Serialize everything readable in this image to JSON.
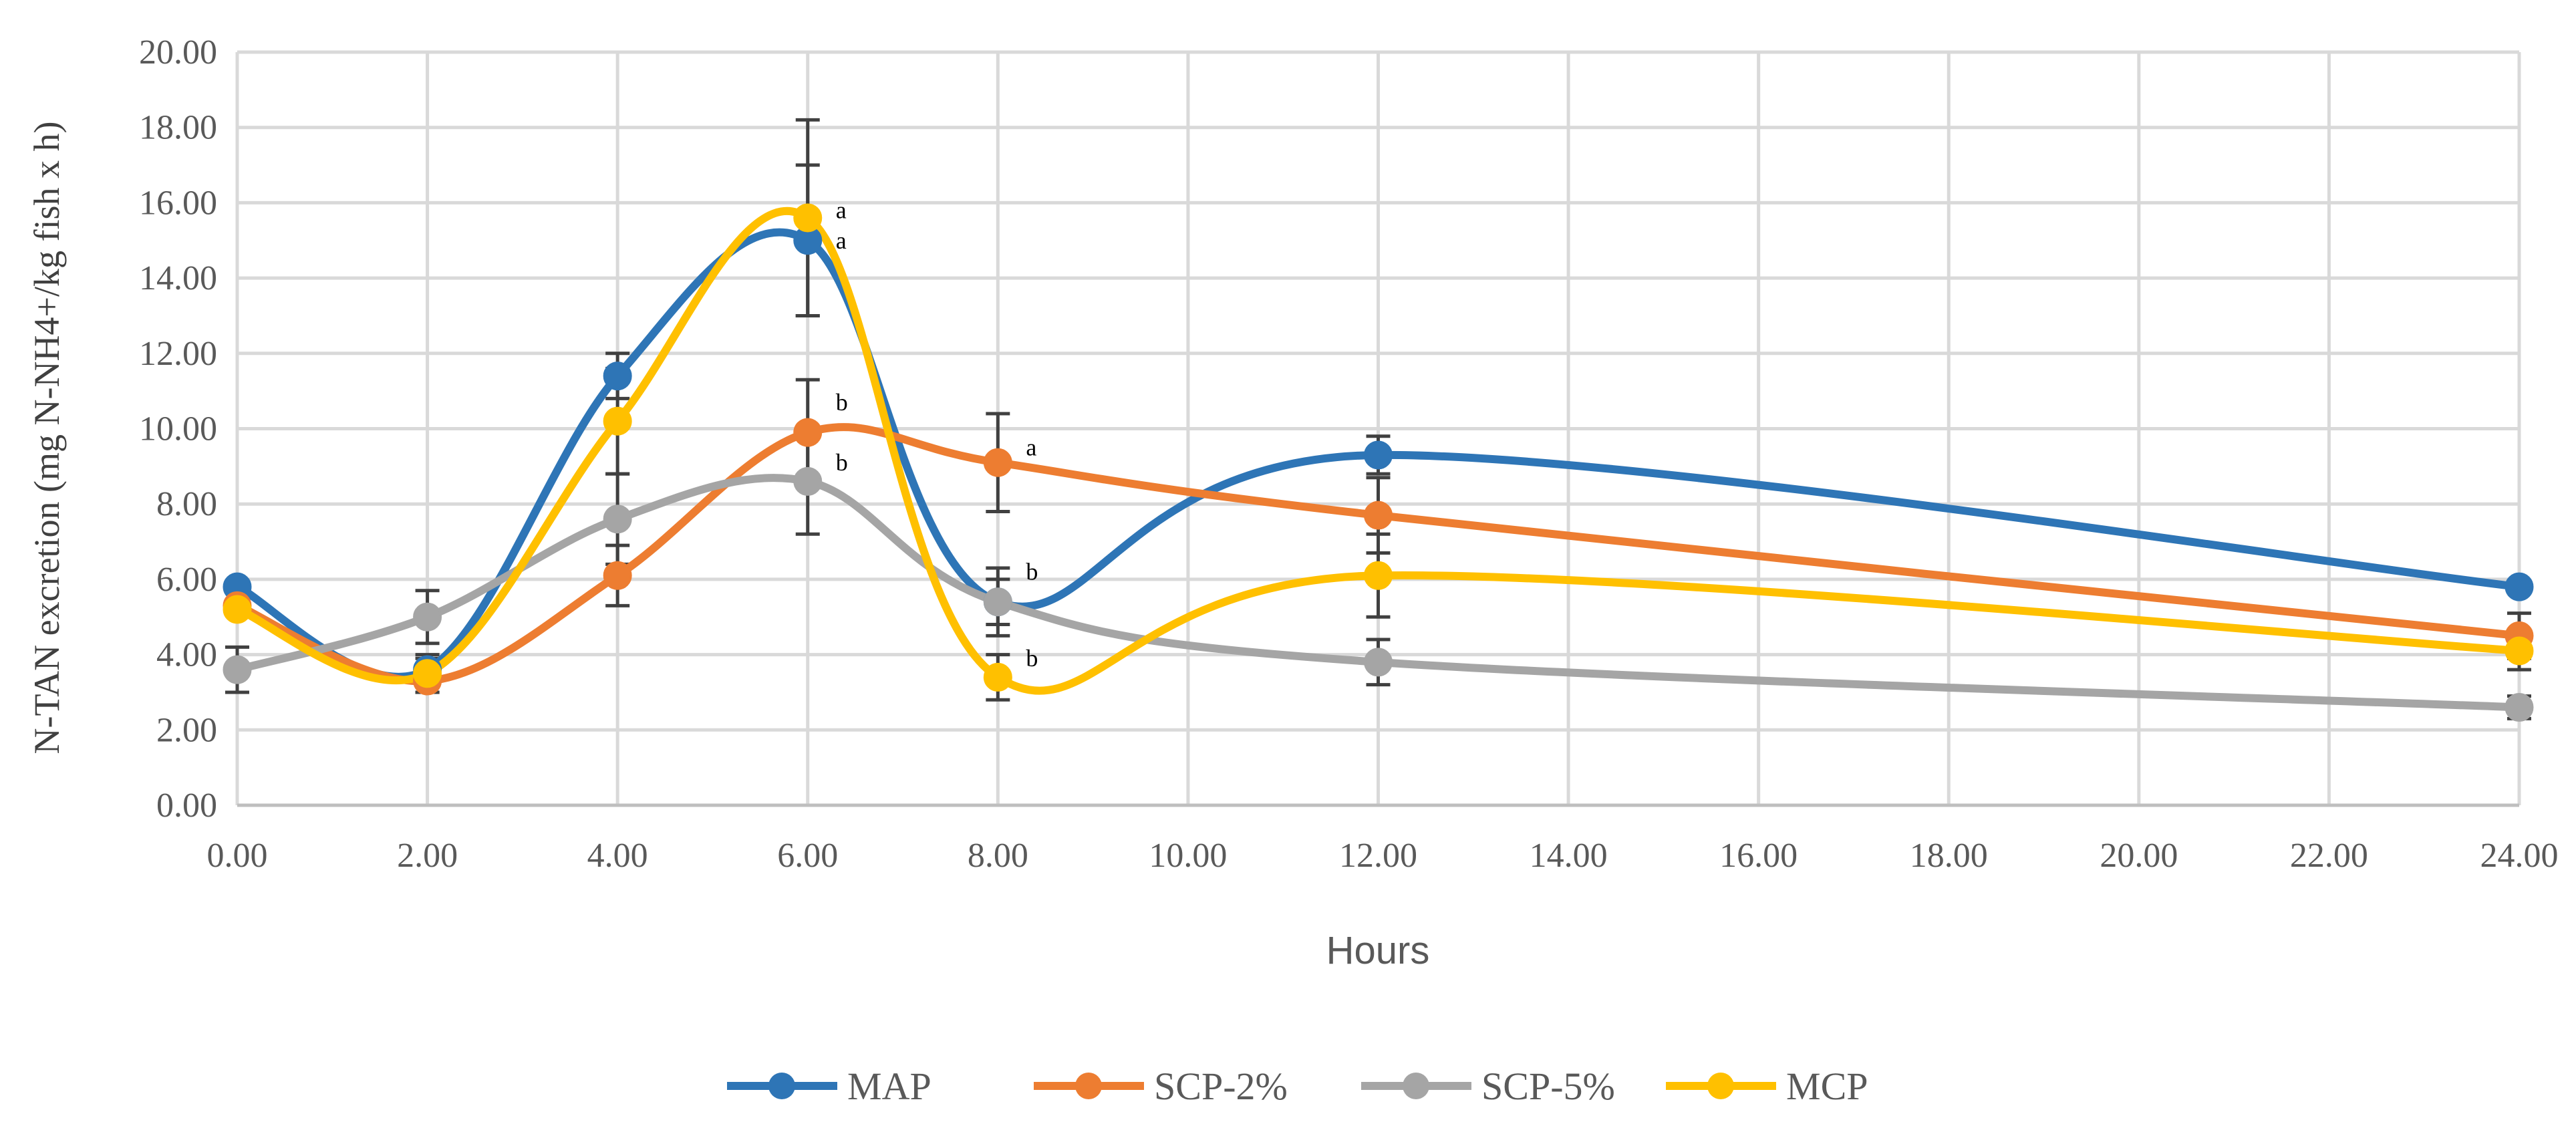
{
  "chart_data": {
    "type": "line",
    "title": "",
    "xlabel": "Hours",
    "ylabel": "N-TAN excretion (mg N-NH4+/kg fish x h)",
    "xlim": [
      0,
      24
    ],
    "ylim": [
      0,
      20
    ],
    "grid": true,
    "legend_position": "bottom",
    "x_ticks": [
      "0.00",
      "2.00",
      "4.00",
      "6.00",
      "8.00",
      "10.00",
      "12.00",
      "14.00",
      "16.00",
      "18.00",
      "20.00",
      "22.00",
      "24.00"
    ],
    "y_ticks": [
      "0.00",
      "2.00",
      "4.00",
      "6.00",
      "8.00",
      "10.00",
      "12.00",
      "14.00",
      "16.00",
      "18.00",
      "20.00"
    ],
    "x": [
      0,
      2,
      4,
      6,
      8,
      12,
      24
    ],
    "series": [
      {
        "name": "MAP",
        "color": "#2E75B6",
        "values": [
          5.8,
          3.6,
          11.4,
          15.0,
          5.4,
          9.3,
          5.8
        ],
        "errors": [
          0.0,
          0.3,
          0.6,
          2.0,
          0.6,
          0.5,
          0.0
        ]
      },
      {
        "name": "SCP-2%",
        "color": "#ED7D31",
        "values": [
          5.3,
          3.3,
          6.1,
          9.9,
          9.1,
          7.7,
          4.5
        ],
        "errors": [
          0.0,
          0.3,
          0.8,
          1.4,
          1.3,
          1.0,
          0.6
        ]
      },
      {
        "name": "SCP-5%",
        "color": "#A5A5A5",
        "values": [
          3.6,
          5.0,
          7.6,
          8.6,
          5.4,
          3.8,
          2.6
        ],
        "errors": [
          0.6,
          0.7,
          1.2,
          1.4,
          0.9,
          0.6,
          0.3
        ]
      },
      {
        "name": "MCP",
        "color": "#FFC000",
        "values": [
          5.2,
          3.5,
          10.2,
          15.6,
          3.4,
          6.1,
          4.1
        ],
        "errors": [
          0.0,
          0.5,
          1.4,
          2.6,
          0.6,
          1.1,
          0.5
        ]
      }
    ],
    "annotations": [
      {
        "x": 6,
        "y": 15.8,
        "text": "a"
      },
      {
        "x": 6,
        "y": 15.0,
        "text": "a"
      },
      {
        "x": 6,
        "y": 10.7,
        "text": "b"
      },
      {
        "x": 6,
        "y": 9.1,
        "text": "b"
      },
      {
        "x": 8,
        "y": 9.5,
        "text": "a"
      },
      {
        "x": 8,
        "y": 6.2,
        "text": "b"
      },
      {
        "x": 8,
        "y": 3.9,
        "text": "b"
      }
    ]
  }
}
